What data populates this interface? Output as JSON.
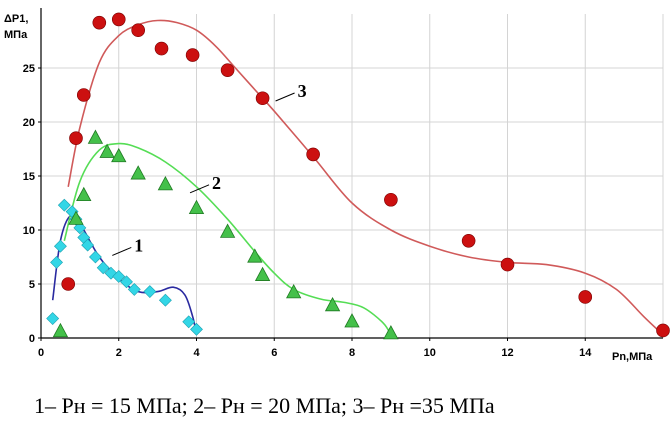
{
  "chart_data": {
    "type": "scatter",
    "title": "",
    "xlabel": "Pn,МПа",
    "ylabel_line1": "ΔP1,",
    "ylabel_line2": "МПа",
    "xlim": [
      0,
      16
    ],
    "ylim": [
      0,
      30
    ],
    "x_ticks": [
      "0",
      "2",
      "4",
      "6",
      "8",
      "10",
      "12",
      "14"
    ],
    "y_ticks": [
      "0",
      "5",
      "10",
      "15",
      "20",
      "25"
    ],
    "grid": true,
    "legend": "none",
    "series": [
      {
        "label": "1",
        "marker": "diamond",
        "marker_color": "#33d6e6",
        "line_color": "#2a2aa0",
        "points": [
          [
            0.3,
            1.8
          ],
          [
            0.4,
            7
          ],
          [
            0.5,
            8.5
          ],
          [
            0.6,
            12.3
          ],
          [
            0.8,
            11.7
          ],
          [
            0.9,
            11
          ],
          [
            1.0,
            10.2
          ],
          [
            1.1,
            9.3
          ],
          [
            1.2,
            8.6
          ],
          [
            1.4,
            7.5
          ],
          [
            1.6,
            6.5
          ],
          [
            1.8,
            6.0
          ],
          [
            2.0,
            5.7
          ],
          [
            2.2,
            5.2
          ],
          [
            2.4,
            4.5
          ],
          [
            2.8,
            4.3
          ],
          [
            3.2,
            3.5
          ],
          [
            3.8,
            1.5
          ],
          [
            4.0,
            0.8
          ]
        ],
        "curve": [
          [
            0.3,
            3.5
          ],
          [
            0.5,
            9
          ],
          [
            0.75,
            11.3
          ],
          [
            1.0,
            10.6
          ],
          [
            1.5,
            7.5
          ],
          [
            2.0,
            5.5
          ],
          [
            2.5,
            4.3
          ],
          [
            3.0,
            4.3
          ],
          [
            3.4,
            4.7
          ],
          [
            3.7,
            4.0
          ],
          [
            3.9,
            2.0
          ],
          [
            4.0,
            0.3
          ]
        ],
        "label_at": [
          2.4,
          8.2
        ]
      },
      {
        "label": "2",
        "marker": "triangle",
        "marker_color": "#44c04a",
        "line_color": "#55dd55",
        "points": [
          [
            0.5,
            0.6
          ],
          [
            0.9,
            11
          ],
          [
            1.1,
            13.2
          ],
          [
            1.4,
            18.5
          ],
          [
            1.7,
            17.2
          ],
          [
            2.0,
            16.8
          ],
          [
            2.5,
            15.2
          ],
          [
            3.2,
            14.2
          ],
          [
            4.0,
            12.0
          ],
          [
            4.8,
            9.8
          ],
          [
            5.5,
            7.5
          ],
          [
            5.7,
            5.8
          ],
          [
            6.5,
            4.2
          ],
          [
            7.5,
            3.0
          ],
          [
            8.0,
            1.5
          ],
          [
            9.0,
            0.4
          ]
        ],
        "curve": [
          [
            0.6,
            9
          ],
          [
            1.0,
            14.5
          ],
          [
            1.5,
            17.4
          ],
          [
            2.0,
            18.0
          ],
          [
            2.5,
            17.6
          ],
          [
            3.2,
            16.3
          ],
          [
            4.0,
            14.0
          ],
          [
            4.8,
            11.0
          ],
          [
            5.5,
            8.0
          ],
          [
            6.0,
            6.0
          ],
          [
            6.5,
            4.5
          ],
          [
            7.2,
            3.6
          ],
          [
            7.8,
            3.3
          ],
          [
            8.3,
            2.8
          ],
          [
            8.8,
            1.4
          ],
          [
            9.0,
            0.3
          ]
        ],
        "label_at": [
          4.4,
          14.0
        ]
      },
      {
        "label": "3",
        "marker": "circle",
        "marker_color": "#cc1010",
        "line_color": "#d05a5a",
        "points": [
          [
            0.7,
            5
          ],
          [
            0.9,
            18.5
          ],
          [
            1.1,
            22.5
          ],
          [
            1.5,
            29.2
          ],
          [
            2.0,
            29.5
          ],
          [
            2.5,
            28.5
          ],
          [
            3.1,
            26.8
          ],
          [
            3.9,
            26.2
          ],
          [
            4.8,
            24.8
          ],
          [
            5.7,
            22.2
          ],
          [
            7.0,
            17.0
          ],
          [
            9.0,
            12.8
          ],
          [
            11.0,
            9.0
          ],
          [
            12.0,
            6.8
          ],
          [
            14.0,
            3.8
          ],
          [
            16.0,
            0.7
          ]
        ],
        "curve": [
          [
            0.7,
            14
          ],
          [
            1.0,
            19.5
          ],
          [
            1.5,
            25.5
          ],
          [
            2.0,
            28.0
          ],
          [
            2.5,
            29.0
          ],
          [
            3.0,
            29.4
          ],
          [
            3.5,
            29.2
          ],
          [
            4.0,
            28.5
          ],
          [
            4.5,
            27.0
          ],
          [
            5.0,
            25.0
          ],
          [
            5.5,
            23.0
          ],
          [
            6.0,
            21.0
          ],
          [
            7.0,
            16.8
          ],
          [
            8.0,
            12.5
          ],
          [
            9.0,
            10.0
          ],
          [
            10.0,
            8.5
          ],
          [
            11.0,
            7.5
          ],
          [
            12.0,
            7.0
          ],
          [
            13.0,
            6.8
          ],
          [
            14.0,
            6.0
          ],
          [
            14.8,
            4.5
          ],
          [
            15.5,
            2.0
          ],
          [
            16.0,
            0.3
          ]
        ],
        "label_at": [
          6.6,
          22.5
        ]
      }
    ]
  },
  "caption": "1– Pн = 15 МПа; 2– Pн = 20 МПа; 3– Pн =35 МПа"
}
